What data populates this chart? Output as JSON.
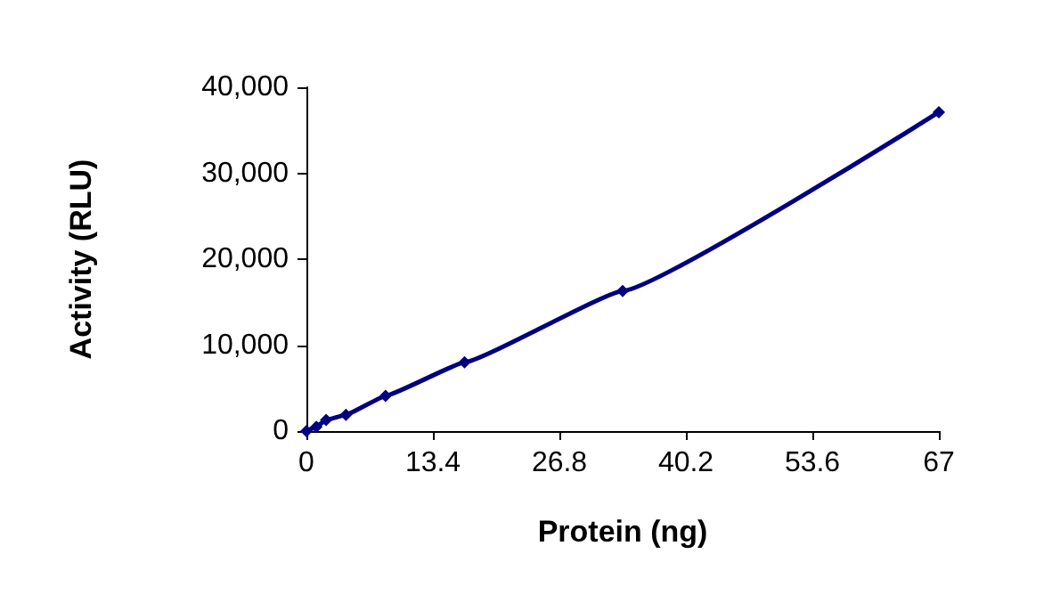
{
  "chart_data": {
    "type": "line",
    "xlabel": "Protein (ng)",
    "ylabel": "Activity (RLU)",
    "x": [
      0,
      1.05,
      2.09,
      4.19,
      8.38,
      16.75,
      33.5,
      67
    ],
    "series": [
      {
        "color": "#000080",
        "values": [
          0,
          500,
          1300,
          1900,
          4100,
          8000,
          16300,
          37100
        ]
      }
    ],
    "xlim": [
      0,
      67
    ],
    "xticks": [
      0,
      13.4,
      26.8,
      40.2,
      53.6,
      67
    ],
    "ylim": [
      0,
      40000
    ],
    "yticks": [
      {
        "value": 0,
        "label": "0"
      },
      {
        "value": 10000,
        "label": "10,000"
      },
      {
        "value": 20000,
        "label": "20,000"
      },
      {
        "value": 30000,
        "label": "30,000"
      },
      {
        "value": 40000,
        "label": "40,000"
      }
    ],
    "grid": false,
    "marker": "diamond",
    "line_style": "solid"
  }
}
